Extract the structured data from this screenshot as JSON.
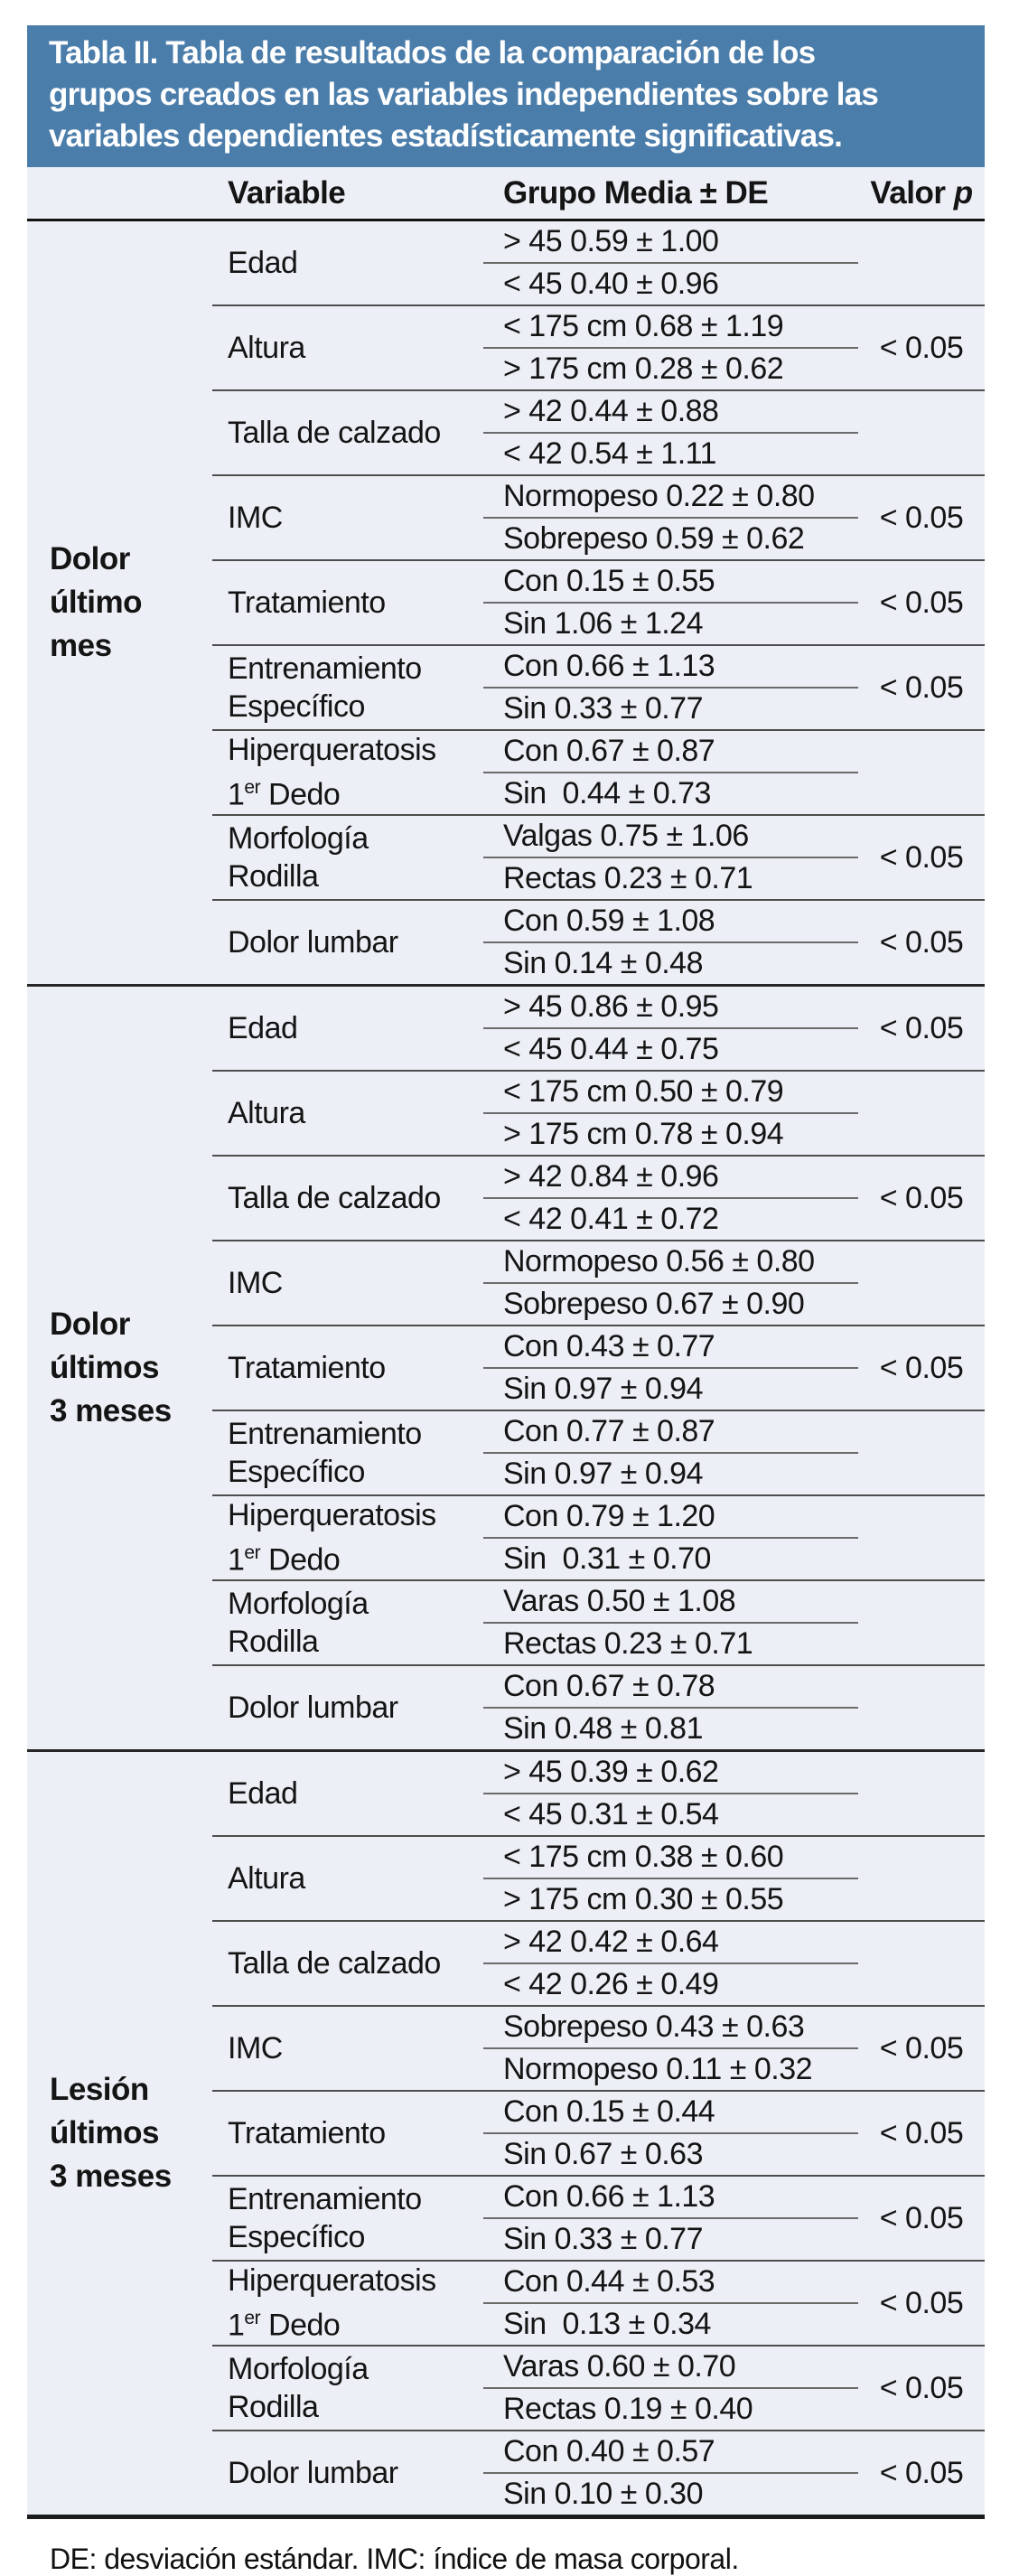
{
  "colors": {
    "banner_bg": "#4b7dab",
    "table_bg": "#edeff6"
  },
  "banner": {
    "lines": [
      "Tabla II. Tabla de resultados de la comparación de los",
      "grupos creados en las variables independientes sobre las",
      "variables dependientes estadísticamente significativas."
    ]
  },
  "columns": {
    "variable": "Variable",
    "grupo": "Grupo Media ± DE",
    "p_label": "Valor",
    "p_symbol": "p"
  },
  "sections": [
    {
      "label_lines": [
        "Dolor",
        "último",
        "mes"
      ],
      "rows": [
        {
          "name": [
            [
              {
                "t": "Edad"
              }
            ]
          ],
          "groups": [
            "> 45 0.59 ± 1.00",
            "< 45 0.40 ± 0.96"
          ],
          "p": ""
        },
        {
          "name": [
            [
              {
                "t": "Altura"
              }
            ]
          ],
          "groups": [
            "< 175 cm 0.68 ± 1.19",
            "> 175 cm 0.28 ± 0.62"
          ],
          "p": "< 0.05"
        },
        {
          "name": [
            [
              {
                "t": "Talla de calzado"
              }
            ]
          ],
          "groups": [
            "> 42 0.44 ± 0.88",
            "< 42 0.54 ± 1.11"
          ],
          "p": ""
        },
        {
          "name": [
            [
              {
                "t": "IMC"
              }
            ]
          ],
          "groups": [
            "Normopeso 0.22 ± 0.80",
            "Sobrepeso 0.59 ± 0.62"
          ],
          "p": "< 0.05"
        },
        {
          "name": [
            [
              {
                "t": "Tratamiento"
              }
            ]
          ],
          "groups": [
            "Con 0.15 ± 0.55",
            "Sin 1.06 ± 1.24"
          ],
          "p": "< 0.05"
        },
        {
          "name": [
            [
              {
                "t": "Entrenamiento"
              }
            ],
            [
              {
                "t": "Específico"
              }
            ]
          ],
          "groups": [
            "Con 0.66 ± 1.13",
            "Sin 0.33 ± 0.77"
          ],
          "p": "< 0.05"
        },
        {
          "name": [
            [
              {
                "t": "Hiperqueratosis"
              }
            ],
            [
              {
                "t": "1"
              },
              {
                "t": "er",
                "sup": true
              },
              {
                "t": " Dedo"
              }
            ]
          ],
          "groups": [
            "Con 0.67 ± 0.87",
            "Sin  0.44 ± 0.73"
          ],
          "p": ""
        },
        {
          "name": [
            [
              {
                "t": "Morfología"
              }
            ],
            [
              {
                "t": "Rodilla"
              }
            ]
          ],
          "groups": [
            "Valgas 0.75 ± 1.06",
            "Rectas 0.23 ± 0.71"
          ],
          "p": "< 0.05"
        },
        {
          "name": [
            [
              {
                "t": "Dolor lumbar"
              }
            ]
          ],
          "groups": [
            "Con 0.59 ± 1.08",
            "Sin 0.14 ± 0.48"
          ],
          "p": "< 0.05"
        }
      ]
    },
    {
      "label_lines": [
        "Dolor",
        "últimos",
        "3 meses"
      ],
      "rows": [
        {
          "name": [
            [
              {
                "t": "Edad"
              }
            ]
          ],
          "groups": [
            "> 45 0.86 ± 0.95",
            "< 45 0.44 ± 0.75"
          ],
          "p": "< 0.05"
        },
        {
          "name": [
            [
              {
                "t": "Altura"
              }
            ]
          ],
          "groups": [
            "< 175 cm 0.50 ± 0.79",
            "> 175 cm 0.78 ± 0.94"
          ],
          "p": ""
        },
        {
          "name": [
            [
              {
                "t": "Talla de calzado"
              }
            ]
          ],
          "groups": [
            "> 42 0.84 ± 0.96",
            "< 42 0.41 ± 0.72"
          ],
          "p": "< 0.05"
        },
        {
          "name": [
            [
              {
                "t": "IMC"
              }
            ]
          ],
          "groups": [
            "Normopeso 0.56 ± 0.80",
            "Sobrepeso 0.67 ± 0.90"
          ],
          "p": ""
        },
        {
          "name": [
            [
              {
                "t": "Tratamiento"
              }
            ]
          ],
          "groups": [
            "Con 0.43 ± 0.77",
            "Sin 0.97 ± 0.94"
          ],
          "p": "< 0.05"
        },
        {
          "name": [
            [
              {
                "t": "Entrenamiento"
              }
            ],
            [
              {
                "t": "Específico"
              }
            ]
          ],
          "groups": [
            "Con 0.77 ± 0.87",
            "Sin 0.97 ± 0.94"
          ],
          "p": ""
        },
        {
          "name": [
            [
              {
                "t": "Hiperqueratosis"
              }
            ],
            [
              {
                "t": "1"
              },
              {
                "t": "er",
                "sup": true
              },
              {
                "t": " Dedo"
              }
            ]
          ],
          "groups": [
            "Con 0.79 ± 1.20",
            "Sin  0.31 ± 0.70"
          ],
          "p": ""
        },
        {
          "name": [
            [
              {
                "t": "Morfología"
              }
            ],
            [
              {
                "t": "Rodilla"
              }
            ]
          ],
          "groups": [
            "Varas 0.50 ± 1.08",
            "Rectas 0.23 ± 0.71"
          ],
          "p": ""
        },
        {
          "name": [
            [
              {
                "t": "Dolor lumbar"
              }
            ]
          ],
          "groups": [
            "Con 0.67 ± 0.78",
            "Sin 0.48 ± 0.81"
          ],
          "p": ""
        }
      ]
    },
    {
      "label_lines": [
        "Lesión",
        "últimos",
        "3 meses"
      ],
      "rows": [
        {
          "name": [
            [
              {
                "t": "Edad"
              }
            ]
          ],
          "groups": [
            "> 45 0.39 ± 0.62",
            "< 45 0.31 ± 0.54"
          ],
          "p": ""
        },
        {
          "name": [
            [
              {
                "t": "Altura"
              }
            ]
          ],
          "groups": [
            "< 175 cm 0.38 ± 0.60",
            "> 175 cm 0.30 ± 0.55"
          ],
          "p": ""
        },
        {
          "name": [
            [
              {
                "t": "Talla de calzado"
              }
            ]
          ],
          "groups": [
            "> 42 0.42 ± 0.64",
            "< 42 0.26 ± 0.49"
          ],
          "p": ""
        },
        {
          "name": [
            [
              {
                "t": "IMC"
              }
            ]
          ],
          "groups": [
            "Sobrepeso 0.43 ± 0.63",
            "Normopeso 0.11 ± 0.32"
          ],
          "p": "< 0.05"
        },
        {
          "name": [
            [
              {
                "t": "Tratamiento"
              }
            ]
          ],
          "groups": [
            "Con 0.15 ± 0.44",
            "Sin 0.67 ± 0.63"
          ],
          "p": "< 0.05"
        },
        {
          "name": [
            [
              {
                "t": "Entrenamiento"
              }
            ],
            [
              {
                "t": "Específico"
              }
            ]
          ],
          "groups": [
            "Con 0.66 ± 1.13",
            "Sin 0.33 ± 0.77"
          ],
          "p": "< 0.05"
        },
        {
          "name": [
            [
              {
                "t": "Hiperqueratosis"
              }
            ],
            [
              {
                "t": "1"
              },
              {
                "t": "er",
                "sup": true
              },
              {
                "t": " Dedo"
              }
            ]
          ],
          "groups": [
            "Con 0.44 ± 0.53",
            "Sin  0.13 ± 0.34"
          ],
          "p": "< 0.05"
        },
        {
          "name": [
            [
              {
                "t": "Morfología"
              }
            ],
            [
              {
                "t": "Rodilla"
              }
            ]
          ],
          "groups": [
            "Varas 0.60 ± 0.70",
            "Rectas 0.19 ± 0.40"
          ],
          "p": "< 0.05"
        },
        {
          "name": [
            [
              {
                "t": "Dolor lumbar"
              }
            ]
          ],
          "groups": [
            "Con 0.40 ± 0.57",
            "Sin 0.10 ± 0.30"
          ],
          "p": "< 0.05"
        }
      ]
    }
  ],
  "footnote": "DE: desviación estándar. IMC: índice de masa corporal."
}
